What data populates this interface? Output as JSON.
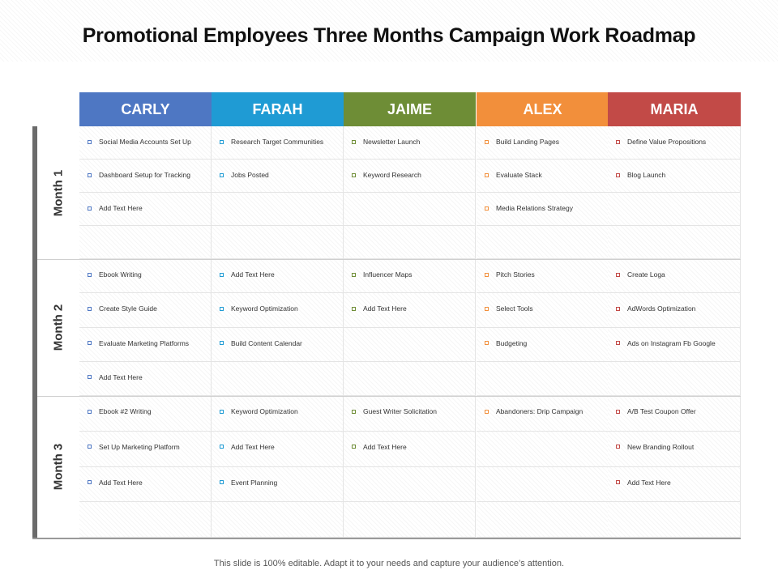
{
  "title": "Promotional Employees Three Months Campaign Work Roadmap",
  "footer": "This slide is 100% editable. Adapt it to your needs and capture your audience’s attention.",
  "columns": [
    {
      "name": "CARLY",
      "color": "#4e77c3",
      "bullet_color": "#4e77c3"
    },
    {
      "name": "FARAH",
      "color": "#1f9bd4",
      "bullet_color": "#1f9bd4"
    },
    {
      "name": "JAIME",
      "color": "#6e8d36",
      "bullet_color": "#6e8d36"
    },
    {
      "name": "ALEX",
      "color": "#f28f3b",
      "bullet_color": "#f28f3b"
    },
    {
      "name": "MARIA",
      "color": "#c24a47",
      "bullet_color": "#c24a47"
    }
  ],
  "months": [
    {
      "label": "Month 1",
      "rows": [
        [
          "Social Media Accounts Set Up",
          "Research Target Communities",
          "Newsletter Launch",
          "Build Landing Pages",
          "Define Value Propositions"
        ],
        [
          "Dashboard Setup for Tracking",
          "Jobs Posted",
          "Keyword Research",
          "Evaluate Stack",
          "Blog Launch"
        ],
        [
          "Add Text Here",
          "",
          "",
          "Media Relations Strategy",
          ""
        ],
        [
          "",
          "",
          "",
          "",
          ""
        ]
      ]
    },
    {
      "label": "Month 2",
      "rows": [
        [
          "Ebook Writing",
          "Add Text Here",
          "Influencer Maps",
          "Pitch Stories",
          "Create Loga"
        ],
        [
          "Create Style Guide",
          "Keyword Optimization",
          "Add Text Here",
          "Select Tools",
          "AdWords Optimization"
        ],
        [
          "Evaluate Marketing Platforms",
          "Build Content Calendar",
          "",
          "Budgeting",
          "Ads on Instagram Fb Google"
        ],
        [
          "Add Text Here",
          "",
          "",
          "",
          ""
        ]
      ]
    },
    {
      "label": "Month 3",
      "rows": [
        [
          "Ebook #2 Writing",
          "Keyword Optimization",
          "Guest Writer Solicitation",
          "Abandoners: Drip Campaign",
          "A/B Test Coupon Offer"
        ],
        [
          "Set Up Marketing Platform",
          "Add Text Here",
          "Add Text Here",
          "",
          "New Branding Rollout"
        ],
        [
          "Add Text Here",
          "Event Planning",
          "",
          "",
          "Add Text Here"
        ],
        [
          "",
          "",
          "",
          "",
          ""
        ]
      ]
    }
  ]
}
